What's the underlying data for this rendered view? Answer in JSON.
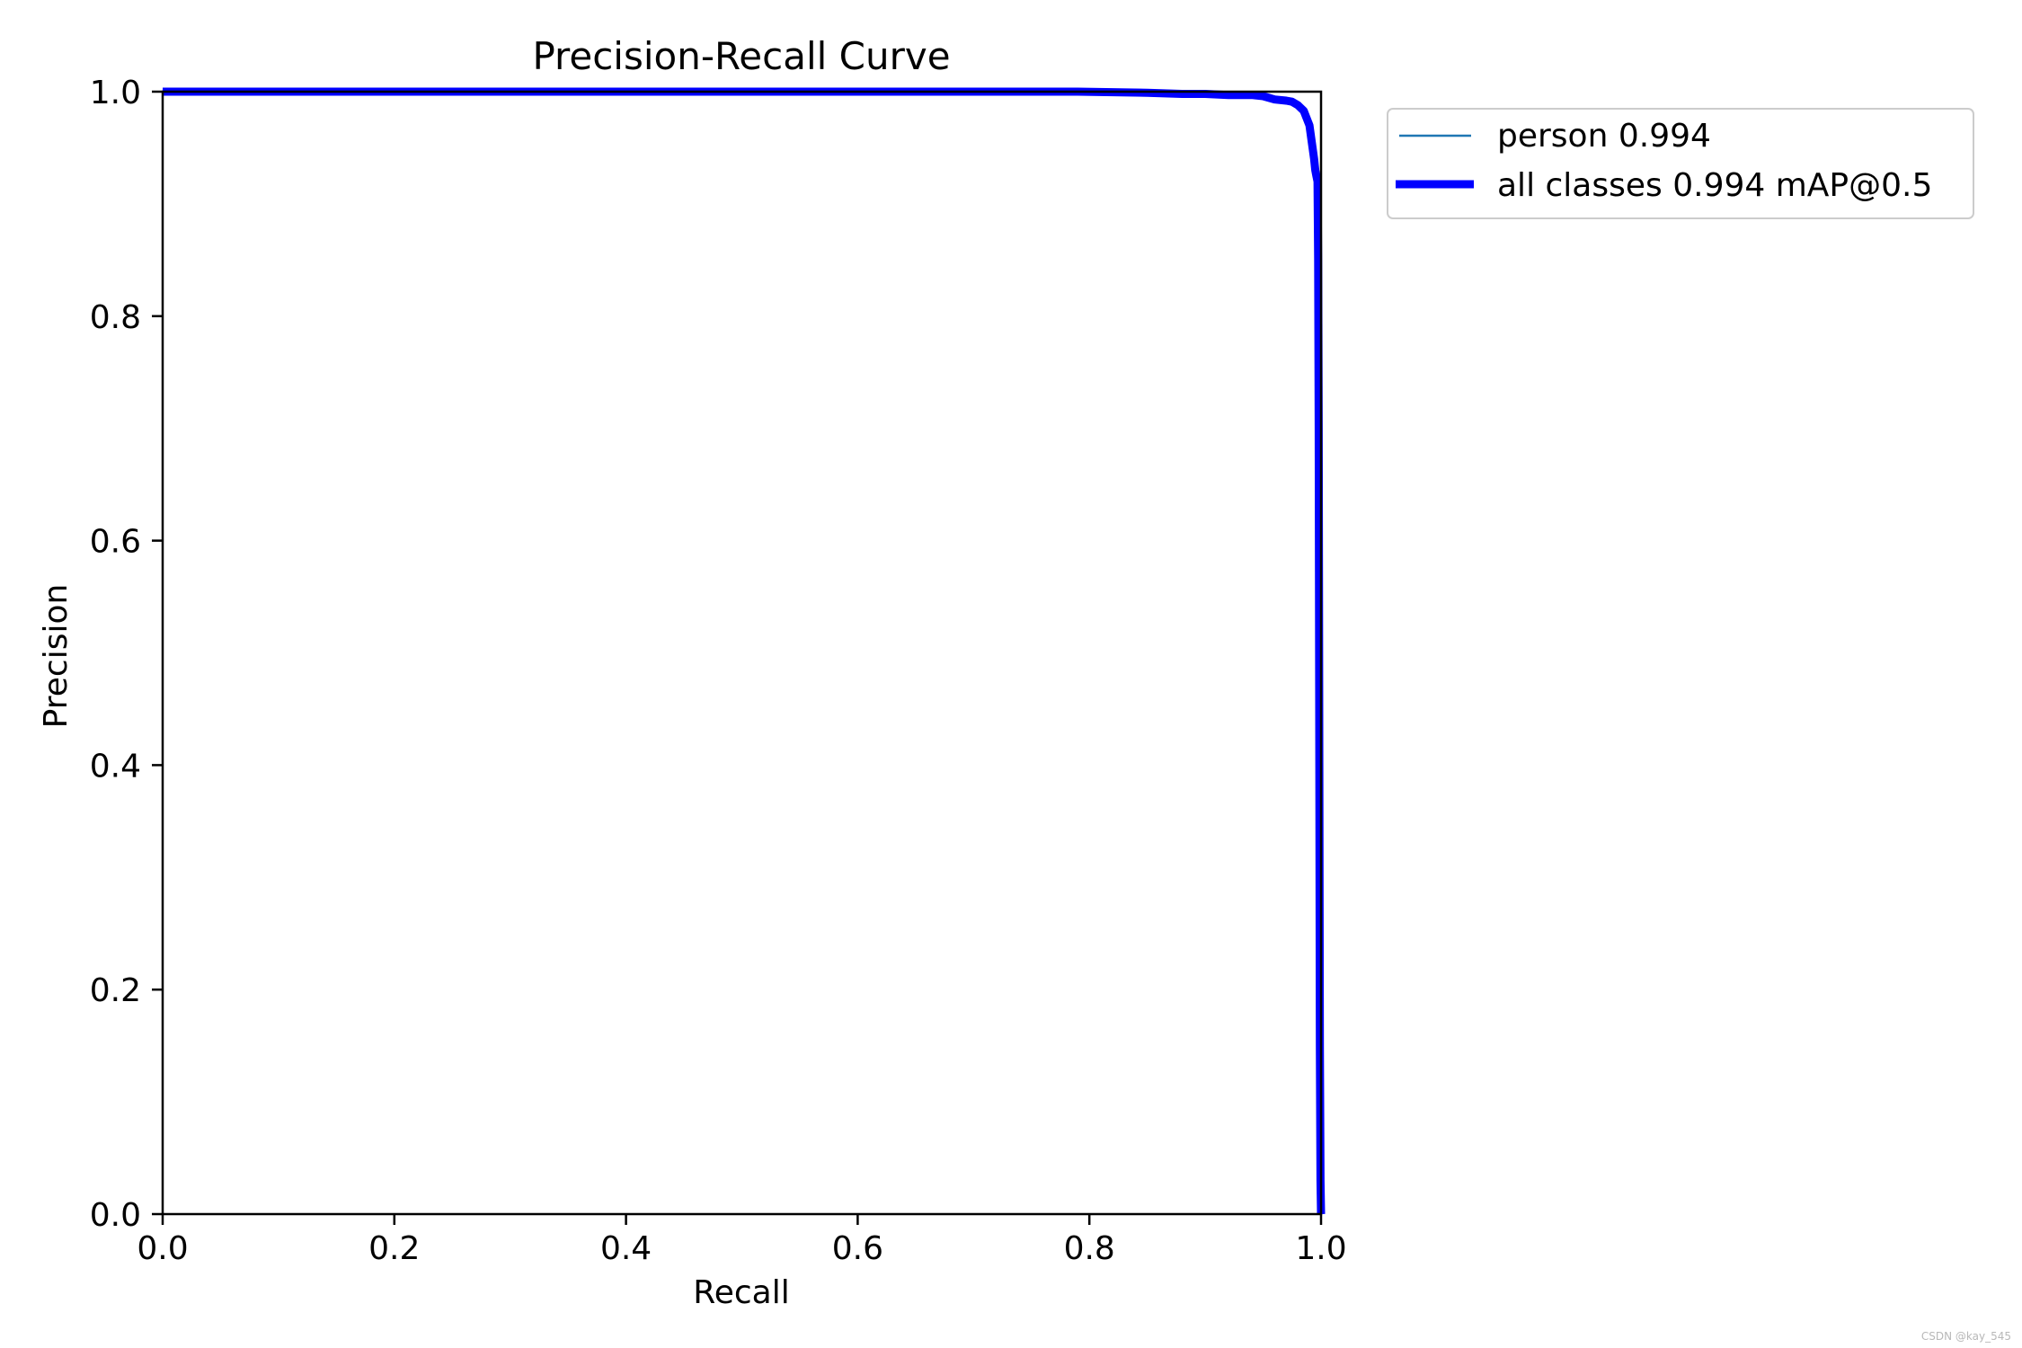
{
  "chart_data": {
    "type": "line",
    "title": "Precision-Recall Curve",
    "xlabel": "Recall",
    "ylabel": "Precision",
    "xlim": [
      0.0,
      1.0
    ],
    "ylim": [
      0.0,
      1.0
    ],
    "xticks": [
      "0.0",
      "0.2",
      "0.4",
      "0.6",
      "0.8",
      "1.0"
    ],
    "yticks": [
      "0.0",
      "0.2",
      "0.4",
      "0.6",
      "0.8",
      "1.0"
    ],
    "grid": false,
    "legend_position": "outside upper-right",
    "series": [
      {
        "name": "person 0.994",
        "color": "#1f77b4",
        "style": "thin",
        "x": [
          0.0,
          0.1,
          0.2,
          0.3,
          0.4,
          0.5,
          0.6,
          0.7,
          0.79,
          0.85,
          0.88,
          0.9,
          0.92,
          0.94,
          0.95,
          0.96,
          0.97,
          0.975,
          0.98,
          0.985,
          0.99,
          0.992,
          0.994,
          0.995,
          0.996,
          0.997,
          0.9975,
          0.998,
          0.9985,
          0.999,
          0.9995,
          1.0
        ],
        "y": [
          1.0,
          1.0,
          1.0,
          1.0,
          1.0,
          1.0,
          1.0,
          1.0,
          1.0,
          0.999,
          0.998,
          0.998,
          0.997,
          0.997,
          0.996,
          0.993,
          0.992,
          0.991,
          0.988,
          0.983,
          0.97,
          0.955,
          0.94,
          0.93,
          0.925,
          0.92,
          0.85,
          0.7,
          0.4,
          0.15,
          0.03,
          0.0
        ]
      },
      {
        "name": "all classes 0.994 mAP@0.5",
        "color": "#0000ff",
        "style": "thick",
        "x": [
          0.0,
          0.1,
          0.2,
          0.3,
          0.4,
          0.5,
          0.6,
          0.7,
          0.79,
          0.85,
          0.88,
          0.9,
          0.92,
          0.94,
          0.95,
          0.96,
          0.97,
          0.975,
          0.98,
          0.985,
          0.99,
          0.992,
          0.994,
          0.995,
          0.996,
          0.997,
          0.9975,
          0.998,
          0.9985,
          0.999,
          0.9995,
          1.0
        ],
        "y": [
          1.0,
          1.0,
          1.0,
          1.0,
          1.0,
          1.0,
          1.0,
          1.0,
          1.0,
          0.999,
          0.998,
          0.998,
          0.997,
          0.997,
          0.996,
          0.993,
          0.992,
          0.991,
          0.988,
          0.983,
          0.97,
          0.955,
          0.94,
          0.93,
          0.925,
          0.92,
          0.85,
          0.7,
          0.4,
          0.15,
          0.03,
          0.0
        ]
      }
    ]
  },
  "watermark": "CSDN @kay_545"
}
